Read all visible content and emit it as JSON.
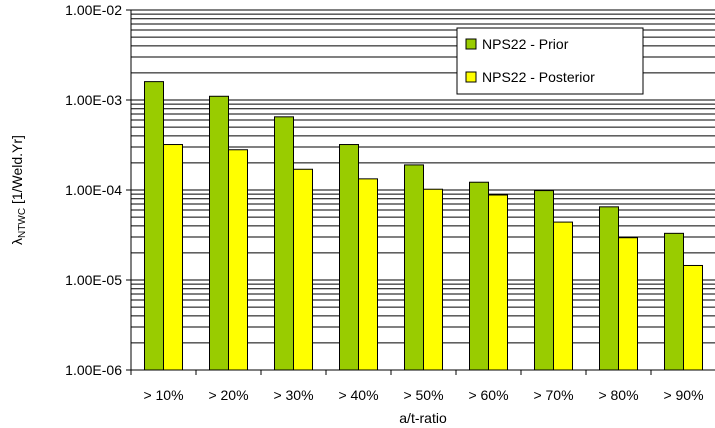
{
  "chart_data": {
    "type": "bar",
    "scale": "log",
    "categories": [
      "> 10%",
      "> 20%",
      "> 30%",
      "> 40%",
      "> 50%",
      "> 60%",
      "> 70%",
      "> 80%",
      "> 90%"
    ],
    "series": [
      {
        "name": "NPS22 - Prior",
        "color": "#99cc00",
        "values": [
          0.0016,
          0.0011,
          0.00065,
          0.00032,
          0.00019,
          0.000122,
          9.85e-05,
          6.5e-05,
          3.3e-05
        ]
      },
      {
        "name": "NPS22 - Posterior",
        "color": "#ffff00",
        "values": [
          0.00032,
          0.00028,
          0.00017,
          0.000133,
          0.000102,
          8.8e-05,
          4.4e-05,
          2.95e-05,
          1.45e-05
        ]
      }
    ],
    "ylim": [
      1e-06,
      0.01
    ],
    "yticks": [
      "1.00E-06",
      "1.00E-05",
      "1.00E-04",
      "1.00E-03",
      "1.00E-02"
    ],
    "xlabel": "a/t-ratio",
    "ylabel_symbol": "λ",
    "ylabel_sub": "NTWC",
    "ylabel_rest": " [1/Weld.Yr]",
    "grid": true,
    "legend_position": "top-right"
  }
}
